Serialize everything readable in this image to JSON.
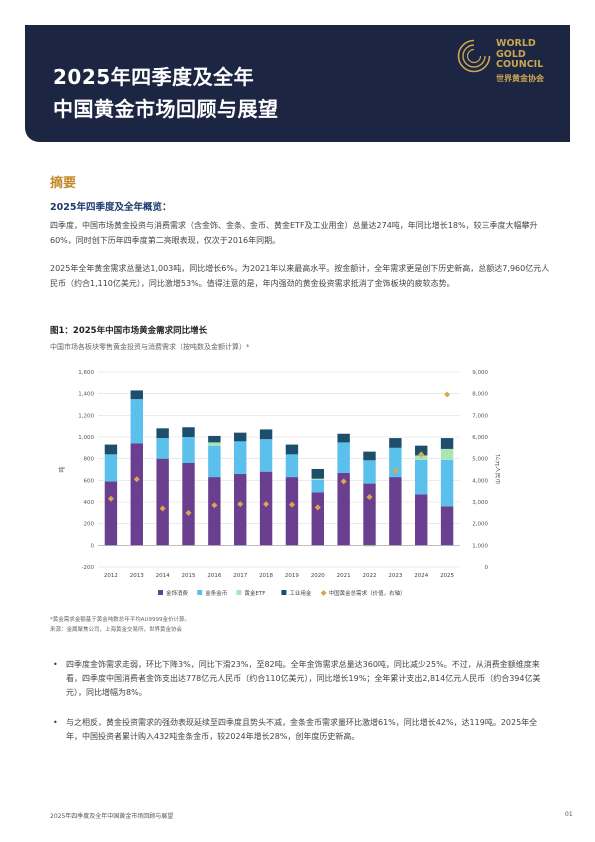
{
  "header": {
    "title_line1": "2025年四季度及全年",
    "title_line2": "中国黄金市场回顾与展望",
    "logo_line1": "WORLD",
    "logo_line2": "GOLD",
    "logo_line3": "COUNCIL",
    "logo_cn": "世界黄金协会"
  },
  "section": {
    "title": "摘要",
    "subtitle": "2025年四季度及全年概览：",
    "para1": "四季度，中国市场黄金投资与消费需求（含金饰、金条、金币、黄金ETF及工业用金）总量达274吨，年同比增长18%，较三季度大幅攀升60%，同时创下历年四季度第二亮眼表现，仅次于2016年同期。",
    "para2": "2025年全年黄金需求总量达1,003吨，同比增长6%，为2021年以来最高水平。按金额计，全年需求更是创下历史新高，总额达7,960亿元人民币（约合1,110亿美元），同比激增53%。值得注意的是，年内强劲的黄金投资需求抵消了金饰板块的疲软态势。"
  },
  "figure": {
    "title": "图1：2025年中国市场黄金需求同比增长",
    "subtitle": "中国市场各板块零售黄金投资与消费需求（按吨数及金额计算）*",
    "notes_line1": "*黄金需求金额基于黄金吨数总年平均AU9999金价计算。",
    "notes_line2": "来源：金属聚焦公司，上海黄金交易所，世界黄金协会"
  },
  "chart_data": {
    "type": "bar",
    "categories": [
      "2012",
      "2013",
      "2014",
      "2015",
      "2016",
      "2017",
      "2018",
      "2019",
      "2020",
      "2021",
      "2022",
      "2023",
      "2024",
      "2025"
    ],
    "series": [
      {
        "name": "金饰消费",
        "color": "#6b3f8f",
        "values": [
          590,
          940,
          800,
          760,
          630,
          660,
          680,
          630,
          490,
          670,
          570,
          630,
          470,
          360
        ]
      },
      {
        "name": "金条金币",
        "color": "#5bc0eb",
        "values": [
          250,
          410,
          190,
          240,
          290,
          300,
          300,
          210,
          115,
          280,
          215,
          270,
          320,
          430
        ]
      },
      {
        "name": "黄金ETF",
        "color": "#a8e6b5",
        "values": [
          0,
          0,
          0,
          0,
          30,
          0,
          0,
          0,
          10,
          0,
          -10,
          0,
          40,
          100
        ]
      },
      {
        "name": "工业用金",
        "color": "#1d4e6b",
        "values": [
          90,
          80,
          90,
          90,
          60,
          80,
          90,
          90,
          90,
          80,
          80,
          90,
          90,
          100
        ]
      },
      {
        "name": "中国黄金总需求（价值，右轴）",
        "color": "#d9a84e",
        "axis": "right",
        "values": [
          3150,
          4050,
          2700,
          2500,
          2850,
          2900,
          2900,
          2880,
          2750,
          3950,
          3230,
          4450,
          5200,
          7960
        ]
      }
    ],
    "ylim": [
      -200,
      1600
    ],
    "y_ticks": [
      "-200",
      "0",
      "200",
      "400",
      "600",
      "800",
      "1,000",
      "1,200",
      "1,400",
      "1,600"
    ],
    "y2lim": [
      0,
      9000
    ],
    "y2_ticks": [
      "0",
      "1,000",
      "2,000",
      "3,000",
      "4,000",
      "5,000",
      "6,000",
      "7,000",
      "8,000",
      "9,000"
    ],
    "ylabel": "吨",
    "y2label": "亿元人民币",
    "legend_position": "bottom",
    "legend_labels": [
      "金饰消费",
      "金条金币",
      "黄金ETF",
      "工业用金",
      "中国黄金总需求（价值，右轴）"
    ],
    "grid": true
  },
  "bullets": [
    "四季度金饰需求走弱，环比下降3%，同比下滑23%，至82吨。全年金饰需求总量达360吨，同比减少25%。不过，从消费金额维度来看，四季度中国消费者金饰支出达778亿元人民币（约合110亿美元），同比增长19%；全年累计支出2,814亿元人民币（约合394亿美元），同比增幅为8%。",
    "与之相反，黄金投资需求的强劲表现延续至四季度且势头不减，金条金币需求量环比激增61%，同比增长42%，达119吨。2025年全年，中国投资者累计购入432吨金条金币，较2024年增长28%，创年度历史新高。"
  ],
  "footer": {
    "left": "2025年四季度及全年中国黄金市场回顾与展望",
    "page": "01"
  }
}
